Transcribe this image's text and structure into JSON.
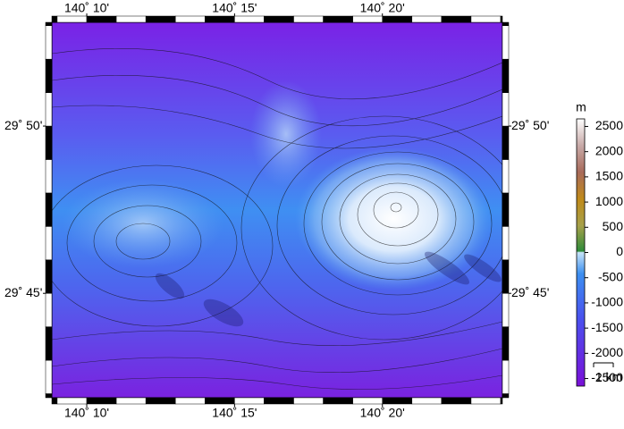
{
  "map": {
    "lonlim": [
      140.147,
      140.401
    ],
    "latlim": [
      29.698,
      29.885
    ],
    "lon_ticks": [
      {
        "value": 140.16667,
        "label": "140˚ 10'"
      },
      {
        "value": 140.25,
        "label": "140˚ 15'"
      },
      {
        "value": 140.33333,
        "label": "140˚ 20'"
      }
    ],
    "lat_ticks": [
      {
        "value": 29.83333,
        "label": "29˚ 50'"
      },
      {
        "value": 29.75,
        "label": "29˚ 45'"
      }
    ],
    "colorbar": {
      "unit": "m",
      "lim": [
        -2650,
        2650
      ],
      "ticks": [
        2500,
        2000,
        1500,
        1000,
        500,
        0,
        -500,
        -1000,
        -1500,
        -2000,
        -2500
      ]
    },
    "scale_bar": "1 km"
  }
}
